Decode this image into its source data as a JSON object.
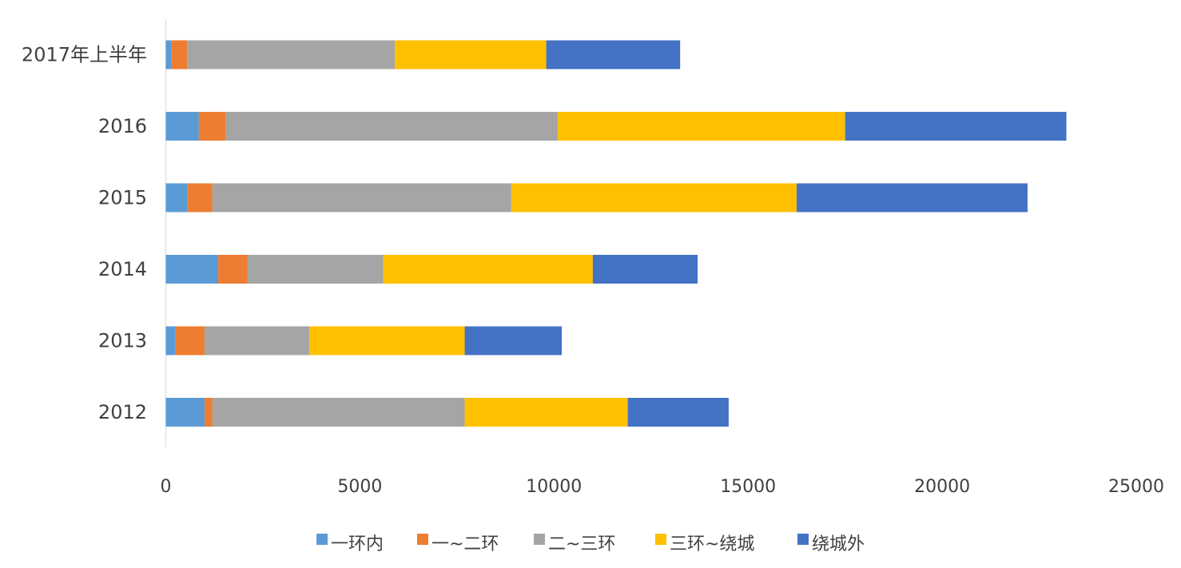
{
  "chart_data": {
    "type": "bar",
    "orientation": "horizontal",
    "stacked": true,
    "categories": [
      "2012",
      "2013",
      "2014",
      "2015",
      "2016",
      "2017年上半年"
    ],
    "series": [
      {
        "name": "一环内",
        "color": "#5B9BD5",
        "values": [
          1000,
          250,
          1350,
          550,
          850,
          150
        ]
      },
      {
        "name": "一~二环",
        "color": "#ED7D31",
        "values": [
          200,
          750,
          750,
          650,
          700,
          400
        ]
      },
      {
        "name": "二~三环",
        "color": "#A5A5A5",
        "values": [
          6500,
          2700,
          3500,
          7700,
          8550,
          5350
        ]
      },
      {
        "name": "三环~绕城",
        "color": "#FFC000",
        "values": [
          4200,
          4000,
          5400,
          7350,
          7400,
          3900
        ]
      },
      {
        "name": "绕城外",
        "color": "#4472C4",
        "values": [
          2600,
          2500,
          2700,
          5950,
          5700,
          3450
        ]
      }
    ],
    "xlim": [
      0,
      25000
    ],
    "xticks": [
      0,
      5000,
      10000,
      15000,
      20000,
      25000
    ],
    "grid": false,
    "legend_position": "bottom"
  }
}
